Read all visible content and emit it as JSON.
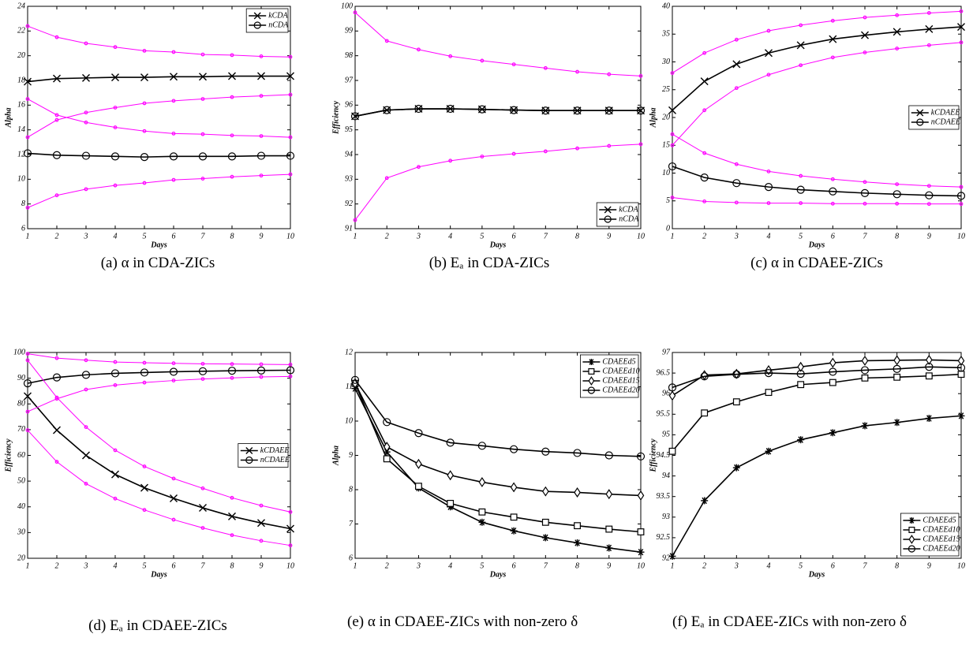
{
  "chart_data": [
    {
      "type": "line",
      "caption": "(a) α in CDA-ZICs",
      "xlabel": "Days",
      "ylabel": "Alpha",
      "x": [
        1,
        2,
        3,
        4,
        5,
        6,
        7,
        8,
        9,
        10
      ],
      "xlim": [
        1,
        10
      ],
      "xticks": [
        1,
        2,
        3,
        4,
        5,
        6,
        7,
        8,
        9,
        10
      ],
      "ylim": [
        6,
        24
      ],
      "yticks": [
        6,
        8,
        10,
        12,
        14,
        16,
        18,
        20,
        22,
        24
      ],
      "legend": "upper right",
      "series": [
        {
          "name": "kCDA",
          "color": "#000000",
          "marker": "x",
          "values": [
            17.9,
            18.15,
            18.2,
            18.25,
            18.25,
            18.3,
            18.3,
            18.35,
            18.35,
            18.35
          ]
        },
        {
          "name": "nCDA",
          "color": "#000000",
          "marker": "o",
          "values": [
            12.1,
            11.95,
            11.9,
            11.85,
            11.8,
            11.85,
            11.85,
            11.85,
            11.9,
            11.9
          ]
        },
        {
          "color": "#ff00ff",
          "marker": "o",
          "values": [
            22.4,
            21.5,
            21.0,
            20.7,
            20.4,
            20.3,
            20.1,
            20.05,
            19.95,
            19.9
          ]
        },
        {
          "color": "#ff00ff",
          "marker": "o",
          "values": [
            13.4,
            14.8,
            15.4,
            15.8,
            16.15,
            16.35,
            16.5,
            16.65,
            16.75,
            16.85
          ]
        },
        {
          "color": "#ff00ff",
          "marker": "o",
          "values": [
            16.5,
            15.2,
            14.6,
            14.2,
            13.9,
            13.7,
            13.65,
            13.55,
            13.5,
            13.4
          ]
        },
        {
          "color": "#ff00ff",
          "marker": "o",
          "values": [
            7.7,
            8.7,
            9.2,
            9.5,
            9.7,
            9.95,
            10.05,
            10.2,
            10.3,
            10.4
          ]
        }
      ]
    },
    {
      "type": "line",
      "caption": "(b) Eₐ in CDA-ZICs",
      "xlabel": "Days",
      "ylabel": "Efficiency",
      "x": [
        1,
        2,
        3,
        4,
        5,
        6,
        7,
        8,
        9,
        10
      ],
      "xlim": [
        1,
        10
      ],
      "xticks": [
        1,
        2,
        3,
        4,
        5,
        6,
        7,
        8,
        9,
        10
      ],
      "ylim": [
        91,
        100
      ],
      "yticks": [
        91,
        92,
        93,
        94,
        95,
        96,
        97,
        98,
        99,
        100
      ],
      "legend": "lower right",
      "series": [
        {
          "name": "kCDA",
          "color": "#000000",
          "marker": "x",
          "values": [
            95.55,
            95.8,
            95.85,
            95.85,
            95.83,
            95.8,
            95.78,
            95.78,
            95.78,
            95.78
          ]
        },
        {
          "name": "nCDA",
          "color": "#000000",
          "marker": "o",
          "values": [
            95.55,
            95.8,
            95.85,
            95.85,
            95.83,
            95.8,
            95.78,
            95.78,
            95.78,
            95.78
          ]
        },
        {
          "color": "#ff00ff",
          "marker": "o",
          "values": [
            99.75,
            98.6,
            98.25,
            97.98,
            97.8,
            97.65,
            97.5,
            97.35,
            97.25,
            97.18
          ]
        },
        {
          "color": "#ff00ff",
          "marker": "o",
          "values": [
            91.35,
            93.05,
            93.5,
            93.75,
            93.92,
            94.03,
            94.13,
            94.25,
            94.35,
            94.42
          ]
        }
      ]
    },
    {
      "type": "line",
      "caption": "(c) α in CDAEE-ZICs",
      "xlabel": "Days",
      "ylabel": "Alpha",
      "x": [
        1,
        2,
        3,
        4,
        5,
        6,
        7,
        8,
        9,
        10
      ],
      "xlim": [
        1,
        10
      ],
      "xticks": [
        1,
        2,
        3,
        4,
        5,
        6,
        7,
        8,
        9,
        10
      ],
      "ylim": [
        0,
        40
      ],
      "yticks": [
        0,
        5,
        10,
        15,
        20,
        25,
        30,
        35,
        40
      ],
      "legend": "center right",
      "series": [
        {
          "name": "kCDAEE",
          "color": "#000000",
          "marker": "x",
          "values": [
            21.3,
            26.5,
            29.6,
            31.6,
            33.0,
            34.1,
            34.8,
            35.4,
            35.9,
            36.3
          ]
        },
        {
          "name": "nCDAEE",
          "color": "#000000",
          "marker": "o",
          "values": [
            11.2,
            9.2,
            8.2,
            7.5,
            7.0,
            6.7,
            6.4,
            6.2,
            6.0,
            5.9
          ]
        },
        {
          "color": "#ff00ff",
          "marker": "o",
          "values": [
            28,
            31.6,
            34,
            35.6,
            36.6,
            37.4,
            38,
            38.4,
            38.8,
            39.1
          ]
        },
        {
          "color": "#ff00ff",
          "marker": "o",
          "values": [
            15,
            21.3,
            25.3,
            27.7,
            29.4,
            30.8,
            31.7,
            32.4,
            33,
            33.5
          ]
        },
        {
          "color": "#ff00ff",
          "marker": "o",
          "values": [
            17,
            13.6,
            11.6,
            10.3,
            9.5,
            8.9,
            8.4,
            8.0,
            7.7,
            7.5
          ]
        },
        {
          "color": "#ff00ff",
          "marker": "o",
          "values": [
            5.6,
            4.9,
            4.7,
            4.6,
            4.6,
            4.5,
            4.5,
            4.5,
            4.45,
            4.45
          ]
        }
      ]
    },
    {
      "type": "line",
      "caption": "(d) Eₐ in CDAEE-ZICs",
      "xlabel": "Days",
      "ylabel": "Efficiency",
      "x": [
        1,
        2,
        3,
        4,
        5,
        6,
        7,
        8,
        9,
        10
      ],
      "xlim": [
        1,
        10
      ],
      "xticks": [
        1,
        2,
        3,
        4,
        5,
        6,
        7,
        8,
        9,
        10
      ],
      "ylim": [
        20,
        100
      ],
      "yticks": [
        20,
        30,
        40,
        50,
        60,
        70,
        80,
        90,
        100
      ],
      "legend": "center right",
      "series": [
        {
          "name": "kCDAEE",
          "color": "#000000",
          "marker": "x",
          "values": [
            83,
            69.8,
            60,
            52.6,
            47.4,
            43.3,
            39.6,
            36.3,
            33.7,
            31.5
          ]
        },
        {
          "name": "nCDAEE",
          "color": "#000000",
          "marker": "o",
          "values": [
            88,
            90.3,
            91.3,
            91.9,
            92.2,
            92.5,
            92.7,
            92.9,
            93,
            93.1
          ]
        },
        {
          "color": "#ff00ff",
          "marker": "o",
          "values": [
            97,
            82.5,
            71,
            62,
            55.7,
            51,
            47.2,
            43.5,
            40.5,
            38
          ]
        },
        {
          "color": "#ff00ff",
          "marker": "o",
          "values": [
            69.8,
            57.5,
            49,
            43.2,
            38.8,
            35,
            31.8,
            29,
            26.8,
            25
          ]
        },
        {
          "color": "#ff00ff",
          "marker": "o",
          "values": [
            99.5,
            97.8,
            97,
            96.3,
            96,
            95.8,
            95.6,
            95.5,
            95.4,
            95.3
          ]
        },
        {
          "color": "#ff00ff",
          "marker": "o",
          "values": [
            77,
            82,
            85.6,
            87.3,
            88.3,
            89.1,
            89.7,
            90.1,
            90.5,
            90.7
          ]
        }
      ]
    },
    {
      "type": "line",
      "caption": "(e) α in CDAEE-ZICs with non-zero δ",
      "xlabel": "Days",
      "ylabel": "Alpha",
      "x": [
        1,
        2,
        3,
        4,
        5,
        6,
        7,
        8,
        9,
        10
      ],
      "xlim": [
        1,
        10
      ],
      "xticks": [
        1,
        2,
        3,
        4,
        5,
        6,
        7,
        8,
        9,
        10
      ],
      "ylim": [
        6,
        12
      ],
      "yticks": [
        6,
        7,
        8,
        9,
        10,
        11,
        12
      ],
      "legend": "upper right",
      "series": [
        {
          "name": "CDAEEd5",
          "color": "#000000",
          "marker": "*",
          "values": [
            10.95,
            9.1,
            8.05,
            7.5,
            7.05,
            6.8,
            6.6,
            6.45,
            6.3,
            6.18
          ]
        },
        {
          "name": "CDAEEd10",
          "color": "#000000",
          "marker": "s",
          "values": [
            11.1,
            8.9,
            8.1,
            7.6,
            7.35,
            7.2,
            7.05,
            6.95,
            6.85,
            6.77
          ]
        },
        {
          "name": "CDAEEd15",
          "color": "#000000",
          "marker": "d",
          "values": [
            11.1,
            9.25,
            8.75,
            8.42,
            8.22,
            8.07,
            7.95,
            7.92,
            7.87,
            7.83
          ]
        },
        {
          "name": "CDAEEd20",
          "color": "#000000",
          "marker": "o",
          "values": [
            11.2,
            9.97,
            9.65,
            9.37,
            9.28,
            9.18,
            9.11,
            9.07,
            9.0,
            8.97
          ]
        }
      ]
    },
    {
      "type": "line",
      "caption": "(f) Eₐ in CDAEE-ZICs with non-zero δ",
      "xlabel": "Days",
      "ylabel": "Efficiency",
      "x": [
        1,
        2,
        3,
        4,
        5,
        6,
        7,
        8,
        9,
        10
      ],
      "xlim": [
        1,
        10
      ],
      "xticks": [
        1,
        2,
        3,
        4,
        5,
        6,
        7,
        8,
        9,
        10
      ],
      "ylim": [
        92,
        97
      ],
      "yticks": [
        92,
        92.5,
        93,
        93.5,
        94,
        94.5,
        95,
        95.5,
        96,
        96.5,
        97
      ],
      "legend": "lower right",
      "series": [
        {
          "name": "CDAEEd5",
          "color": "#000000",
          "marker": "*",
          "values": [
            92.05,
            93.4,
            94.2,
            94.6,
            94.88,
            95.05,
            95.22,
            95.3,
            95.4,
            95.46
          ]
        },
        {
          "name": "CDAEEd10",
          "color": "#000000",
          "marker": "s",
          "values": [
            94.6,
            95.53,
            95.8,
            96.03,
            96.22,
            96.27,
            96.38,
            96.4,
            96.43,
            96.47
          ]
        },
        {
          "name": "CDAEEd15",
          "color": "#000000",
          "marker": "d",
          "values": [
            95.95,
            96.45,
            96.48,
            96.57,
            96.65,
            96.75,
            96.8,
            96.81,
            96.82,
            96.8
          ]
        },
        {
          "name": "CDAEEd20",
          "color": "#000000",
          "marker": "o",
          "values": [
            96.15,
            96.42,
            96.47,
            96.5,
            96.48,
            96.53,
            96.57,
            96.6,
            96.65,
            96.63
          ]
        }
      ]
    }
  ]
}
